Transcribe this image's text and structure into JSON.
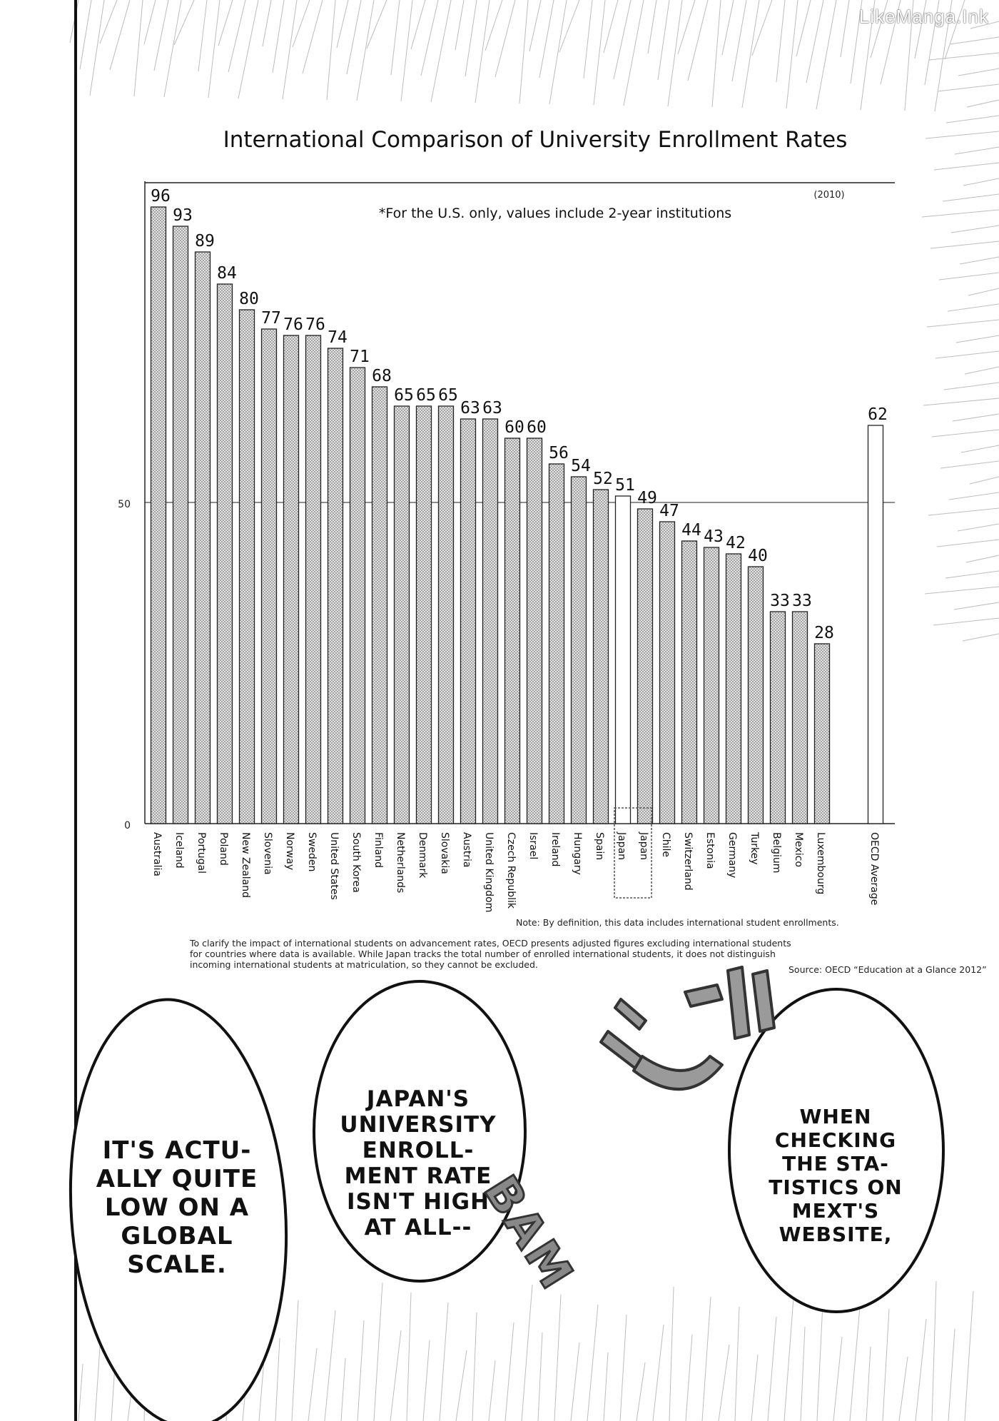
{
  "watermark": "LikeManga.Ink",
  "chart_data": {
    "type": "bar",
    "title": "International Comparison of University Enrollment Rates",
    "year_label": "(2010)",
    "annotation": "*For the U.S. only, values include 2-year institutions",
    "categories": [
      "Australia",
      "Iceland",
      "Portugal",
      "Poland",
      "New Zealand",
      "Slovenia",
      "Norway",
      "Sweden",
      "United States",
      "South Korea",
      "Finland",
      "Netherlands",
      "Denmark",
      "Slovakia",
      "Austria",
      "United Kingdom",
      "Czech Republik",
      "Israel",
      "Ireland",
      "Hungary",
      "Spain",
      "Japan",
      "Japan",
      "Chile",
      "Switzerland",
      "Estonia",
      "Germany",
      "Turkey",
      "Belgium",
      "Mexico",
      "Luxembourg",
      "OECD Average"
    ],
    "values": [
      96,
      93,
      89,
      84,
      80,
      77,
      76,
      76,
      74,
      71,
      68,
      65,
      65,
      65,
      63,
      63,
      60,
      60,
      56,
      54,
      52,
      51,
      49,
      47,
      44,
      43,
      42,
      40,
      33,
      33,
      28,
      62
    ],
    "highlighted": [
      "Japan"
    ],
    "ylim": [
      0,
      100
    ],
    "yticks": [
      0,
      50
    ],
    "xlabel": "",
    "ylabel": "",
    "grid": "horizontal line at 50",
    "colors": {
      "bar_fill": "#c9c9c9",
      "highlight_fill": "#ffffff",
      "stroke": "#222222"
    }
  },
  "footnotes": {
    "note": "Note: By definition, this data includes international student enrollments.",
    "main": "To clarify the impact of international students on advancement rates, OECD presents adjusted figures excluding international students for countries where data is available. While Japan tracks the total number of enrolled international students, it does not distinguish incoming international students at matriculation, so they cannot be excluded.",
    "source": "Source: OECD “Education at a Glance 2012”"
  },
  "bubbles": {
    "left": "IT'S ACTU-\nALLY QUITE\nLOW ON A\nGLOBAL\nSCALE.",
    "middle": "JAPAN'S\nUNIVERSITY\nENROLL-\nMENT RATE\nISN'T HIGH\nAT ALL--",
    "right": "WHEN\nCHECKING\nTHE STA-\nTISTICS ON\nMEXT'S\nWEBSITE,"
  },
  "sfx": "BAM"
}
